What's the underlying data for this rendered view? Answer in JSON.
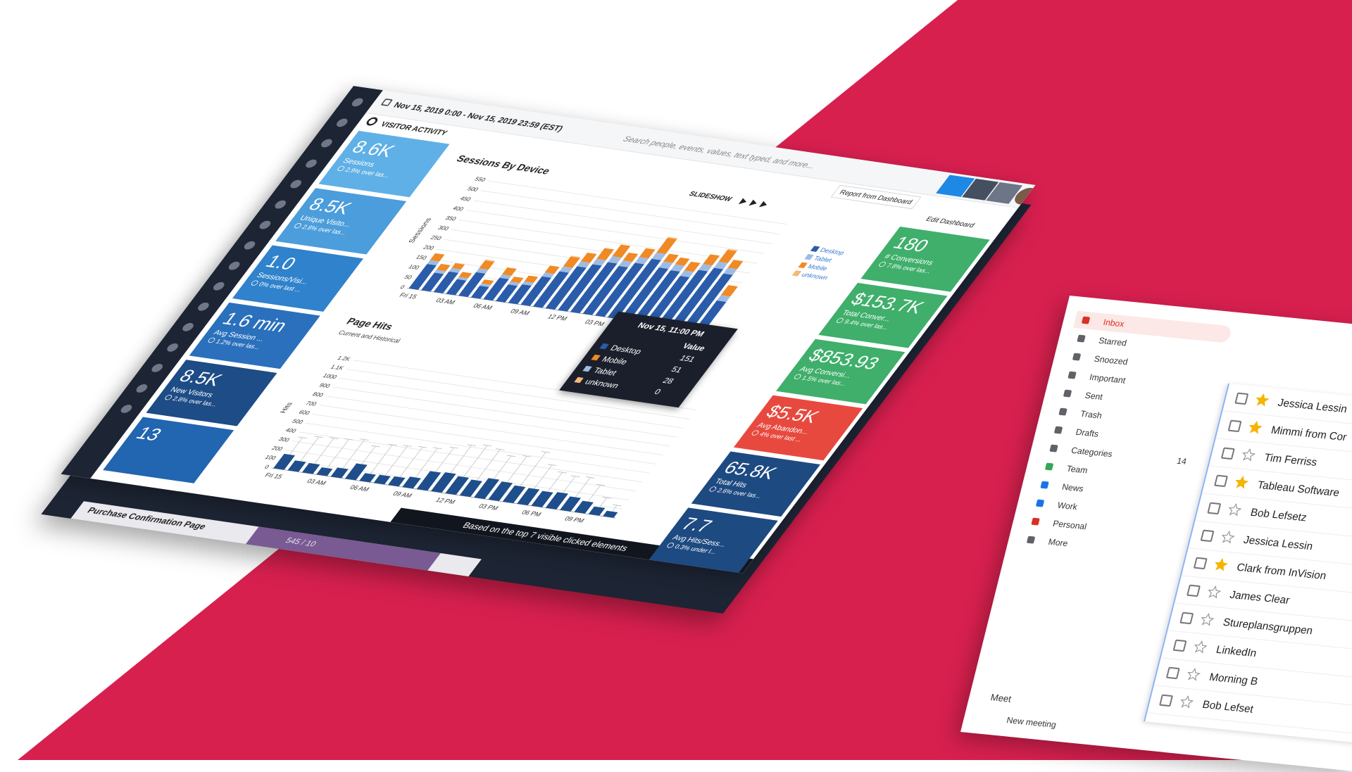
{
  "top_bar": {
    "date_range": "Nov 15, 2019 0:00 - Nov 15, 2019 23:59 (EST)",
    "search_placeholder": "Search people, events, values, text typed, and more...",
    "slideshow": "SLIDESHOW",
    "report_button": "Report from Dashboard",
    "edit_button": "Edit Dashboard"
  },
  "section_title": "VISITOR ACTIVITY",
  "left_tiles": [
    {
      "value": "8.6K",
      "label": "Sessions",
      "change": "2.9% over las...",
      "color": "#5fb0e6"
    },
    {
      "value": "8.5K",
      "label": "Unique Visito...",
      "change": "2.8% over las...",
      "color": "#4b9ddb"
    },
    {
      "value": "1.0",
      "label": "Sessions/Visi...",
      "change": "0% over last ...",
      "color": "#2f82cb"
    },
    {
      "value": "1.6 min",
      "label": "Avg Session ...",
      "change": "1.2% over las...",
      "color": "#2a70bc"
    },
    {
      "value": "8.5K",
      "label": "New Visitors",
      "change": "2.8% over las...",
      "color": "#1d4c86"
    },
    {
      "value": "13",
      "label": "",
      "change": "",
      "color": "#2265b0"
    }
  ],
  "right_tiles": [
    {
      "value": "180",
      "label": "# Conversions",
      "change": "7.8% over las...",
      "color": "#3faf6b"
    },
    {
      "value": "$153.7K",
      "label": "Total Conver...",
      "change": "9.4% over las...",
      "color": "#3faf6b"
    },
    {
      "value": "$853.93",
      "label": "Avg Conversi...",
      "change": "1.5% over las...",
      "color": "#3faf6b"
    },
    {
      "value": "$5.5K",
      "label": "Avg Abandon...",
      "change": "4% over last ...",
      "color": "#e8493f"
    },
    {
      "value": "65.8K",
      "label": "Total Hits",
      "change": "2.6% over las...",
      "color": "#1e4a82"
    },
    {
      "value": "7.7",
      "label": "Avg Hits/Sess...",
      "change": "0.3% under l...",
      "color": "#1e4a82"
    }
  ],
  "sessions_chart": {
    "type": "bar",
    "stacked": true,
    "title": "Sessions By Device",
    "y_label": "Sessions",
    "categories": [
      "Fri 15",
      null,
      null,
      "03 AM",
      null,
      null,
      "06 AM",
      null,
      null,
      "09 AM",
      null,
      null,
      "12 PM",
      null,
      null,
      "03 PM",
      null,
      null,
      "06 PM",
      null,
      null,
      "09 PM",
      null,
      null
    ],
    "ylim": [
      0,
      550
    ],
    "yticks": [
      0,
      50,
      100,
      150,
      200,
      250,
      300,
      350,
      400,
      450,
      500,
      550
    ],
    "grid": true,
    "series": [
      {
        "name": "Desktop",
        "color": "#2a5caa",
        "values": [
          125,
          90,
          105,
          75,
          120,
          60,
          110,
          85,
          95,
          145,
          180,
          215,
          235,
          255,
          245,
          270,
          300,
          265,
          260,
          240,
          280,
          300,
          280,
          151
        ]
      },
      {
        "name": "Tablet",
        "color": "#9fbbe3",
        "values": [
          20,
          15,
          18,
          12,
          20,
          12,
          18,
          15,
          15,
          20,
          25,
          25,
          28,
          30,
          28,
          30,
          32,
          30,
          30,
          28,
          30,
          32,
          30,
          28
        ]
      },
      {
        "name": "Mobile",
        "color": "#f08a24",
        "values": [
          35,
          30,
          25,
          25,
          40,
          20,
          35,
          25,
          30,
          35,
          50,
          45,
          55,
          60,
          40,
          45,
          75,
          40,
          35,
          45,
          50,
          60,
          40,
          51
        ]
      },
      {
        "name": "unknown",
        "color": "#f6b878",
        "values": [
          0,
          0,
          0,
          0,
          5,
          0,
          0,
          0,
          0,
          0,
          5,
          0,
          0,
          0,
          0,
          0,
          5,
          0,
          0,
          0,
          0,
          5,
          0,
          0
        ]
      }
    ]
  },
  "tooltip": {
    "title": "Nov 15, 11:00 PM",
    "header": "Value",
    "rows": [
      {
        "name": "Desktop",
        "value": 151,
        "color": "#2a5caa"
      },
      {
        "name": "Mobile",
        "value": 51,
        "color": "#f08a24"
      },
      {
        "name": "Tablet",
        "value": 28,
        "color": "#9fbbe3"
      },
      {
        "name": "unknown",
        "value": 0,
        "color": "#f6b878"
      }
    ]
  },
  "hits_chart": {
    "type": "bar",
    "title": "Page Hits",
    "subtitle": "Current and Historical",
    "y_label": "Hits",
    "color": "#1f4e8c",
    "categories": [
      "Fri 15",
      null,
      null,
      "03 AM",
      null,
      null,
      "06 AM",
      null,
      null,
      "09 AM",
      null,
      null,
      "12 PM",
      null,
      null,
      "03 PM",
      null,
      null,
      "06 PM",
      null,
      null,
      "09 PM",
      null,
      null
    ],
    "ylim": [
      0,
      1250
    ],
    "yticks": [
      0,
      100,
      200,
      300,
      400,
      500,
      600,
      700,
      800,
      900,
      1000,
      {
        "value": 1100,
        "label": "1.1K"
      },
      {
        "value": 1200,
        "label": "1.2K"
      }
    ],
    "grid": true,
    "values": [
      160,
      110,
      105,
      80,
      100,
      170,
      85,
      90,
      95,
      115,
      200,
      210,
      190,
      175,
      215,
      200,
      180,
      175,
      165,
      175,
      150,
      125,
      85,
      60
    ],
    "historical": [
      350,
      380,
      390,
      400,
      420,
      370,
      410,
      420,
      430,
      440,
      470,
      520,
      540,
      520,
      470,
      490,
      560,
      440,
      380,
      360,
      370,
      310,
      190,
      130
    ]
  },
  "footer": {
    "note": "Based on the top 7 visible clicked elements"
  },
  "back_panel": {
    "page": "Purchase Confirmation Page",
    "count": "545 / 10"
  },
  "mail": {
    "folders": [
      {
        "label": "Inbox",
        "color": "#d93025"
      },
      {
        "label": "Starred",
        "color": "#5f6368"
      },
      {
        "label": "Snoozed",
        "color": "#5f6368"
      },
      {
        "label": "Important",
        "color": "#5f6368"
      },
      {
        "label": "Sent",
        "color": "#5f6368"
      },
      {
        "label": "Trash",
        "color": "#5f6368"
      },
      {
        "label": "Drafts",
        "color": "#5f6368"
      },
      {
        "label": "Categories",
        "color": "#5f6368",
        "count": "14"
      },
      {
        "label": "Team",
        "color": "#34a853"
      },
      {
        "label": "News",
        "color": "#1a73e8"
      },
      {
        "label": "Work",
        "color": "#1a73e8"
      },
      {
        "label": "Personal",
        "color": "#d93025"
      },
      {
        "label": "More",
        "color": "#5f6368"
      }
    ],
    "meet": "Meet",
    "new_meeting": "New meeting",
    "messages": [
      {
        "sender": "Jessica Lessin",
        "starred": true
      },
      {
        "sender": "Mimmi from Cor",
        "starred": true
      },
      {
        "sender": "Tim Ferriss",
        "starred": false
      },
      {
        "sender": "Tableau Software",
        "starred": true
      },
      {
        "sender": "Bob Lefsetz",
        "starred": false
      },
      {
        "sender": "Jessica Lessin",
        "starred": false
      },
      {
        "sender": "Clark from InVision",
        "starred": true
      },
      {
        "sender": "James Clear",
        "starred": false
      },
      {
        "sender": "Stureplansgruppen",
        "starred": false
      },
      {
        "sender": "LinkedIn",
        "starred": false
      },
      {
        "sender": "Morning B",
        "starred": false
      },
      {
        "sender": "Bob Lefset",
        "starred": false
      }
    ]
  }
}
